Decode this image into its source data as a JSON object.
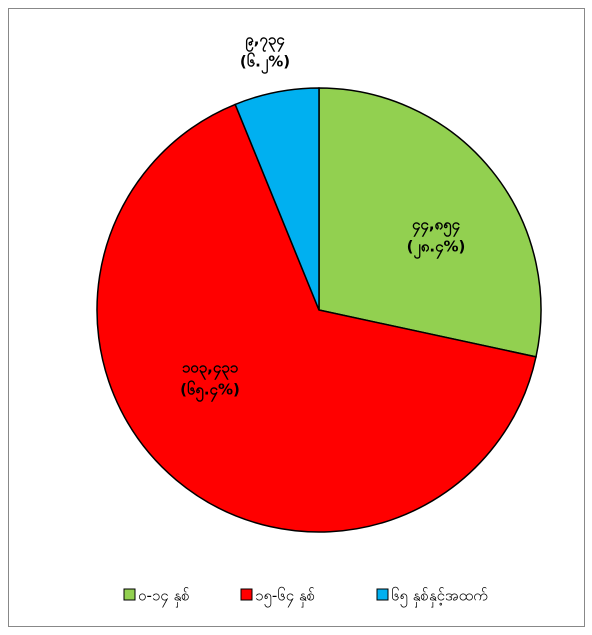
{
  "chart_data": {
    "type": "pie",
    "categories": [
      "၀-၁၄ နှစ်",
      "၁၅-၆၄ နှစ်",
      "၆၅ နှစ်နှင့်အထက်"
    ],
    "values": [
      44854,
      103431,
      9734
    ],
    "value_labels": [
      "၄၄,၈၅၄",
      "၁၀၃,၄၃၁",
      "၉,၇၃၄"
    ],
    "percent_labels": [
      "(၂၈.၄%)",
      "(၆၅.၄%)",
      "(၆.၂%)"
    ],
    "colors": [
      "#92d050",
      "#ff0000",
      "#00b0f0"
    ],
    "legend": "bottom"
  }
}
